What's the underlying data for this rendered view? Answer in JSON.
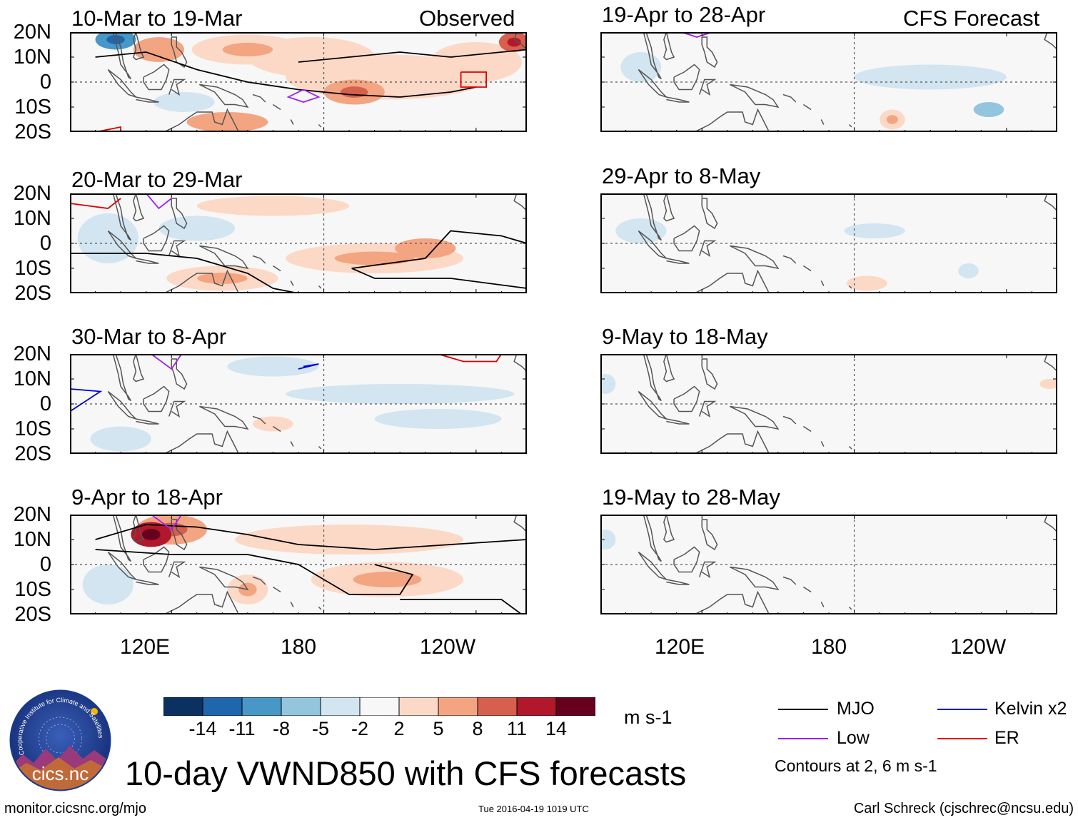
{
  "figure": {
    "main_title": "10-day VWND850 with CFS forecasts",
    "source_url": "monitor.cicsnc.org/mjo",
    "timestamp": "Tue 2016-04-19 1019 UTC",
    "author": "Carl Schreck (cjschrec@ncsu.edu)",
    "logo": {
      "name": "cics-logo",
      "text": "cics.nc",
      "ring_text": "Cooperative Institute for Climate and Satellites"
    },
    "column_titles": {
      "observed": "Observed",
      "forecast": "CFS Forecast"
    }
  },
  "colorbar": {
    "units": "m s-1",
    "tick_labels": [
      "-14",
      "-11",
      "-8",
      "-5",
      "-2",
      "2",
      "5",
      "8",
      "11",
      "14"
    ],
    "colors": [
      "#0a3160",
      "#1f66ad",
      "#4797c7",
      "#93c5de",
      "#d2e5f0",
      "#f7f7f7",
      "#fcd9c6",
      "#f3a582",
      "#d6604d",
      "#b1182b",
      "#67001f"
    ]
  },
  "legend": {
    "items": [
      {
        "label": "MJO",
        "color": "#000000"
      },
      {
        "label": "Kelvin x2",
        "color": "#0000e0"
      },
      {
        "label": "Low",
        "color": "#a020f0"
      },
      {
        "label": "ER",
        "color": "#e00000"
      }
    ],
    "note": "Contours at 2, 6 m s-1"
  },
  "chart_data": {
    "type": "heatmap",
    "title": "10-day VWND850 with CFS forecasts",
    "variable": "850-hPa meridional wind anomaly",
    "units": "m s-1",
    "x_range_deg_east": [
      80,
      260
    ],
    "y_range_deg": [
      -20,
      20
    ],
    "x_ticks": [
      "120E",
      "180",
      "120W"
    ],
    "y_ticks": [
      "20N",
      "10N",
      "0",
      "10S",
      "20S"
    ],
    "levels": [
      -14,
      -11,
      -8,
      -5,
      -2,
      2,
      5,
      8,
      11,
      14
    ],
    "panels": [
      {
        "column": "Observed",
        "period": "10-Mar to 19-Mar",
        "blobs": [
          {
            "lon": 98,
            "lat": 17,
            "rx": 8,
            "ry": 4,
            "val": -9
          },
          {
            "lon": 115,
            "lat": 13,
            "rx": 10,
            "ry": 5,
            "val": 6
          },
          {
            "lon": 150,
            "lat": 13,
            "rx": 22,
            "ry": 6,
            "val": 5
          },
          {
            "lon": 205,
            "lat": 2,
            "rx": 40,
            "ry": 9,
            "val": 4
          },
          {
            "lon": 192,
            "lat": -4,
            "rx": 12,
            "ry": 5,
            "val": 7
          },
          {
            "lon": 240,
            "lat": 8,
            "rx": 18,
            "ry": 8,
            "val": 3
          },
          {
            "lon": 142,
            "lat": -16,
            "rx": 16,
            "ry": 4,
            "val": 6
          },
          {
            "lon": 125,
            "lat": -8,
            "rx": 12,
            "ry": 4,
            "val": -3
          },
          {
            "lon": 255,
            "lat": 16,
            "rx": 6,
            "ry": 4,
            "val": 9
          },
          {
            "lon": 175,
            "lat": 10,
            "rx": 25,
            "ry": 8,
            "val": 3
          }
        ],
        "contours": [
          {
            "color": "#000000",
            "lon": [
              90,
              110,
              130,
              150,
              170,
              190,
              210,
              230,
              240
            ],
            "lat": [
              10,
              12,
              5,
              0,
              -3,
              -5,
              -6,
              -4,
              -2
            ]
          },
          {
            "color": "#000000",
            "lon": [
              170,
              190,
              210,
              230,
              250,
              260
            ],
            "lat": [
              8,
              10,
              12,
              10,
              12,
              13
            ]
          },
          {
            "color": "#a020f0",
            "lon": [
              172,
              178,
              172,
              166,
              172
            ],
            "lat": [
              -3,
              -6,
              -8,
              -6,
              -3
            ]
          },
          {
            "color": "#e00000",
            "lon": [
              234,
              244,
              244,
              234,
              234
            ],
            "lat": [
              4,
              4,
              -2,
              -2,
              4
            ]
          },
          {
            "color": "#e00000",
            "lon": [
              90,
              100,
              100
            ],
            "lat": [
              -20,
              -18,
              -20
            ]
          }
        ]
      },
      {
        "column": "Observed",
        "period": "20-Mar to 29-Mar",
        "blobs": [
          {
            "lon": 140,
            "lat": -14,
            "rx": 22,
            "ry": 5,
            "val": 5
          },
          {
            "lon": 200,
            "lat": -6,
            "rx": 35,
            "ry": 6,
            "val": 5
          },
          {
            "lon": 220,
            "lat": -2,
            "rx": 12,
            "ry": 4,
            "val": 6
          },
          {
            "lon": 160,
            "lat": 15,
            "rx": 30,
            "ry": 4,
            "val": 3
          },
          {
            "lon": 95,
            "lat": 2,
            "rx": 12,
            "ry": 10,
            "val": -3
          },
          {
            "lon": 130,
            "lat": 6,
            "rx": 15,
            "ry": 5,
            "val": -3
          }
        ],
        "contours": [
          {
            "color": "#000000",
            "lon": [
              80,
              110,
              130,
              150,
              160,
              170
            ],
            "lat": [
              -4,
              -4,
              -6,
              -12,
              -18,
              -20
            ]
          },
          {
            "color": "#000000",
            "lon": [
              191,
              220,
              230,
              250,
              260
            ],
            "lat": [
              -10,
              -6,
              5,
              3,
              0
            ]
          },
          {
            "color": "#000000",
            "lon": [
              191,
              200,
              230,
              260
            ],
            "lat": [
              -10,
              -14,
              -14,
              -18
            ]
          },
          {
            "color": "#e00000",
            "lon": [
              80,
              95,
              100
            ],
            "lat": [
              16,
              14,
              18
            ]
          },
          {
            "color": "#a020f0",
            "lon": [
              110,
              115,
              120
            ],
            "lat": [
              20,
              14,
              18
            ]
          }
        ]
      },
      {
        "column": "Observed",
        "period": "30-Mar to 8-Apr",
        "blobs": [
          {
            "lon": 160,
            "lat": 15,
            "rx": 18,
            "ry": 4,
            "val": -3
          },
          {
            "lon": 210,
            "lat": 4,
            "rx": 45,
            "ry": 4,
            "val": -3
          },
          {
            "lon": 100,
            "lat": -14,
            "rx": 12,
            "ry": 5,
            "val": -3
          },
          {
            "lon": 160,
            "lat": -8,
            "rx": 8,
            "ry": 3,
            "val": 3
          },
          {
            "lon": 225,
            "lat": -6,
            "rx": 25,
            "ry": 4,
            "val": -2
          }
        ],
        "contours": [
          {
            "color": "#0000e0",
            "lon": [
              80,
              92,
              80
            ],
            "lat": [
              6,
              5,
              -3
            ]
          },
          {
            "color": "#0000e0",
            "lon": [
              170,
              178,
              172
            ],
            "lat": [
              14,
              16,
              15
            ]
          },
          {
            "color": "#e00000",
            "lon": [
              225,
              235,
              248,
              250
            ],
            "lat": [
              20,
              17,
              17,
              20
            ]
          },
          {
            "color": "#a020f0",
            "lon": [
              112,
              120,
              124
            ],
            "lat": [
              20,
              14,
              20
            ]
          }
        ]
      },
      {
        "column": "Observed",
        "period": "9-Apr to 18-Apr",
        "blobs": [
          {
            "lon": 112,
            "lat": 12,
            "rx": 8,
            "ry": 5,
            "val": 12
          },
          {
            "lon": 120,
            "lat": 14,
            "rx": 14,
            "ry": 6,
            "val": 7
          },
          {
            "lon": 205,
            "lat": -6,
            "rx": 30,
            "ry": 7,
            "val": 5
          },
          {
            "lon": 190,
            "lat": 10,
            "rx": 45,
            "ry": 6,
            "val": 3
          },
          {
            "lon": 150,
            "lat": -10,
            "rx": 8,
            "ry": 6,
            "val": 5
          },
          {
            "lon": 95,
            "lat": -8,
            "rx": 10,
            "ry": 8,
            "val": -3
          }
        ],
        "contours": [
          {
            "color": "#000000",
            "lon": [
              90,
              110,
              130,
              150,
              170,
              200,
              230,
              260
            ],
            "lat": [
              10,
              16,
              15,
              12,
              8,
              6,
              8,
              10
            ]
          },
          {
            "color": "#000000",
            "lon": [
              90,
              120,
              150,
              170,
              190,
              210,
              215,
              200
            ],
            "lat": [
              6,
              4,
              4,
              0,
              -12,
              -12,
              -4,
              0
            ]
          },
          {
            "color": "#000000",
            "lon": [
              210,
              250,
              258
            ],
            "lat": [
              -14,
              -14,
              -20
            ]
          },
          {
            "color": "#a020f0",
            "lon": [
              112,
              120,
              124
            ],
            "lat": [
              20,
              14,
              20
            ]
          }
        ]
      },
      {
        "column": "CFS Forecast",
        "period": "19-Apr to 28-Apr",
        "blobs": [
          {
            "lon": 210,
            "lat": 2,
            "rx": 30,
            "ry": 5,
            "val": -2.5
          },
          {
            "lon": 233,
            "lat": -11,
            "rx": 6,
            "ry": 3,
            "val": -5
          },
          {
            "lon": 195,
            "lat": -15,
            "rx": 5,
            "ry": 4,
            "val": 5
          },
          {
            "lon": 96,
            "lat": 6,
            "rx": 8,
            "ry": 6,
            "val": -3
          }
        ],
        "contours": [
          {
            "color": "#a020f0",
            "lon": [
              112,
              118,
              124
            ],
            "lat": [
              20,
              18,
              20
            ]
          }
        ]
      },
      {
        "column": "CFS Forecast",
        "period": "29-Apr to 8-May",
        "blobs": [
          {
            "lon": 188,
            "lat": 5,
            "rx": 12,
            "ry": 3,
            "val": -2.5
          },
          {
            "lon": 96,
            "lat": 5,
            "rx": 10,
            "ry": 5,
            "val": -2.5
          },
          {
            "lon": 185,
            "lat": -16,
            "rx": 8,
            "ry": 3,
            "val": 2.5
          },
          {
            "lon": 225,
            "lat": -11,
            "rx": 4,
            "ry": 3,
            "val": -2.5
          }
        ],
        "contours": []
      },
      {
        "column": "CFS Forecast",
        "period": "9-May to 18-May",
        "blobs": [
          {
            "lon": 82,
            "lat": 8,
            "rx": 4,
            "ry": 4,
            "val": -2.5
          },
          {
            "lon": 257,
            "lat": 8,
            "rx": 4,
            "ry": 2,
            "val": 2.5
          }
        ],
        "contours": []
      },
      {
        "column": "CFS Forecast",
        "period": "19-May to 28-May",
        "blobs": [
          {
            "lon": 82,
            "lat": 10,
            "rx": 4,
            "ry": 4,
            "val": -2.5
          }
        ],
        "contours": []
      }
    ]
  }
}
